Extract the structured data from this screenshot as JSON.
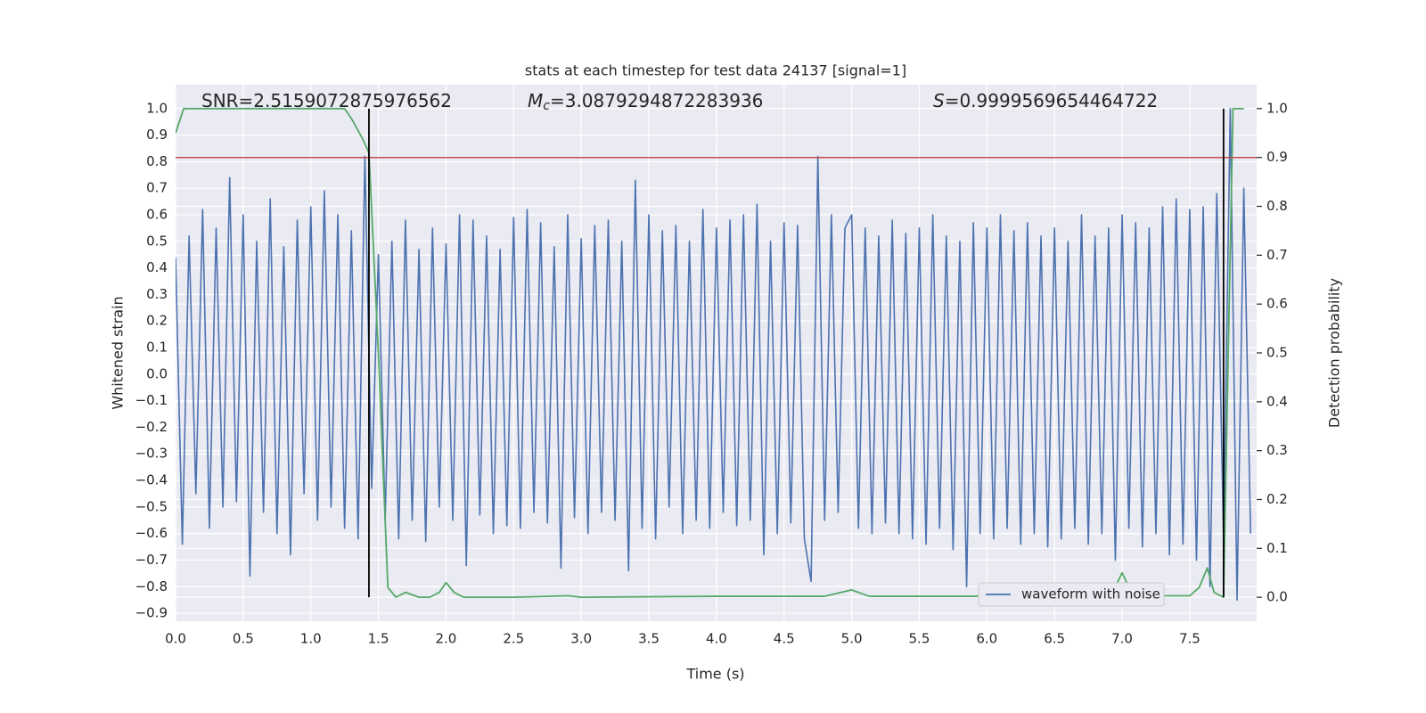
{
  "chart_data": {
    "type": "line",
    "title": "stats at each timestep for test data 24137 [signal=1]",
    "xlabel": "Time (s)",
    "ylabel": "Whitened strain",
    "y2label": "Detection probability",
    "xlim": [
      0,
      7.995
    ],
    "ylim": [
      -0.93,
      1.09
    ],
    "y2lim": [
      -0.049,
      1.049
    ],
    "xticks": [
      {
        "value": 0,
        "label": "0.0"
      },
      0.5,
      {
        "value": 1,
        "label": "1.0"
      },
      1.5,
      {
        "value": 2,
        "label": "2.0"
      },
      2.5,
      {
        "value": 3,
        "label": "3.0"
      },
      3.5,
      {
        "value": 4,
        "label": "4.0"
      },
      4.5,
      {
        "value": 5,
        "label": "5.0"
      },
      5.5,
      {
        "value": 6,
        "label": "6.0"
      },
      6.5,
      {
        "value": 7,
        "label": "7.0"
      },
      7.5
    ],
    "yticks": [
      {
        "value": -0.9,
        "label": "−0.9"
      },
      {
        "value": -0.8,
        "label": "−0.8"
      },
      {
        "value": -0.7,
        "label": "−0.7"
      },
      {
        "value": -0.6,
        "label": "−0.6"
      },
      {
        "value": -0.5,
        "label": "−0.5"
      },
      {
        "value": -0.4,
        "label": "−0.4"
      },
      {
        "value": -0.3,
        "label": "−0.3"
      },
      {
        "value": -0.2,
        "label": "−0.2"
      },
      {
        "value": -0.1,
        "label": "−0.1"
      },
      {
        "value": 0,
        "label": "0.0"
      },
      0.1,
      0.2,
      0.3,
      0.4,
      0.5,
      0.6,
      0.7,
      0.8,
      0.9,
      {
        "value": 1,
        "label": "1.0"
      }
    ],
    "y2ticks": [
      {
        "value": 0,
        "label": "0.0"
      },
      0.1,
      0.2,
      0.3,
      0.4,
      0.5,
      0.6,
      0.7,
      0.8,
      0.9,
      {
        "value": 1,
        "label": "1.0"
      }
    ],
    "grid": true,
    "legend": "lower right",
    "series": [
      {
        "name": "waveform with noise",
        "color": "#4c72b0",
        "x": [
          0,
          0.05,
          0.1,
          0.15,
          0.2,
          0.25,
          0.3,
          0.35,
          0.4,
          0.45,
          0.5,
          0.55,
          0.6,
          0.65,
          0.7,
          0.75,
          0.8,
          0.85,
          0.9,
          0.95,
          1,
          1.05,
          1.1,
          1.15,
          1.2,
          1.25,
          1.3,
          1.35,
          1.4,
          1.45,
          1.5,
          1.55,
          1.6,
          1.65,
          1.7,
          1.75,
          1.8,
          1.85,
          1.9,
          1.95,
          2,
          2.05,
          2.1,
          2.15,
          2.2,
          2.25,
          2.3,
          2.35,
          2.4,
          2.45,
          2.5,
          2.55,
          2.6,
          2.65,
          2.7,
          2.75,
          2.8,
          2.85,
          2.9,
          2.95,
          3,
          3.05,
          3.1,
          3.15,
          3.2,
          3.25,
          3.3,
          3.35,
          3.4,
          3.45,
          3.5,
          3.55,
          3.6,
          3.65,
          3.7,
          3.75,
          3.8,
          3.85,
          3.9,
          3.95,
          4,
          4.05,
          4.1,
          4.15,
          4.2,
          4.25,
          4.3,
          4.35,
          4.4,
          4.45,
          4.5,
          4.55,
          4.6,
          4.65,
          4.7,
          4.75,
          4.8,
          4.85,
          4.9,
          4.95,
          5,
          5.05,
          5.1,
          5.15,
          5.2,
          5.25,
          5.3,
          5.35,
          5.4,
          5.45,
          5.5,
          5.55,
          5.6,
          5.65,
          5.7,
          5.75,
          5.8,
          5.85,
          5.9,
          5.95,
          6,
          6.05,
          6.1,
          6.15,
          6.2,
          6.25,
          6.3,
          6.35,
          6.4,
          6.45,
          6.5,
          6.55,
          6.6,
          6.65,
          6.7,
          6.75,
          6.8,
          6.85,
          6.9,
          6.95,
          7,
          7.05,
          7.1,
          7.15,
          7.2,
          7.25,
          7.3,
          7.35,
          7.4,
          7.45,
          7.5,
          7.55,
          7.6,
          7.65,
          7.7,
          7.75,
          7.8,
          7.85,
          7.9,
          7.95
        ],
        "values": [
          0.44,
          -0.64,
          0.52,
          -0.45,
          0.62,
          -0.58,
          0.55,
          -0.5,
          0.74,
          -0.48,
          0.6,
          -0.76,
          0.5,
          -0.52,
          0.66,
          -0.6,
          0.48,
          -0.68,
          0.58,
          -0.45,
          0.63,
          -0.55,
          0.69,
          -0.5,
          0.6,
          -0.58,
          0.54,
          -0.62,
          0.82,
          -0.43,
          0.45,
          -0.55,
          0.5,
          -0.62,
          0.58,
          -0.55,
          0.47,
          -0.63,
          0.55,
          -0.5,
          0.49,
          -0.55,
          0.6,
          -0.72,
          0.58,
          -0.53,
          0.52,
          -0.6,
          0.47,
          -0.57,
          0.59,
          -0.58,
          0.62,
          -0.52,
          0.57,
          -0.56,
          0.48,
          -0.73,
          0.6,
          -0.54,
          0.51,
          -0.6,
          0.56,
          -0.52,
          0.58,
          -0.55,
          0.5,
          -0.74,
          0.73,
          -0.58,
          0.6,
          -0.62,
          0.54,
          -0.5,
          0.56,
          -0.6,
          0.5,
          -0.55,
          0.62,
          -0.58,
          0.55,
          -0.52,
          0.58,
          -0.57,
          0.6,
          -0.55,
          0.64,
          -0.68,
          0.5,
          -0.6,
          0.57,
          -0.56,
          0.56,
          -0.62,
          -0.78,
          0.82,
          -0.55,
          0.6,
          -0.52,
          0.55,
          0.6,
          -0.58,
          0.55,
          -0.6,
          0.52,
          -0.56,
          0.58,
          -0.6,
          0.53,
          -0.62,
          0.55,
          -0.64,
          0.6,
          -0.58,
          0.52,
          -0.66,
          0.5,
          -0.8,
          0.57,
          -0.6,
          0.55,
          -0.62,
          0.6,
          -0.58,
          0.54,
          -0.64,
          0.57,
          -0.6,
          0.52,
          -0.65,
          0.55,
          -0.62,
          0.5,
          -0.58,
          0.6,
          -0.64,
          0.52,
          -0.6,
          0.55,
          -0.7,
          0.6,
          -0.58,
          0.57,
          -0.65,
          0.55,
          -0.6,
          0.63,
          -0.68,
          0.66,
          -0.64,
          0.62,
          -0.7,
          0.63,
          -0.8,
          0.68,
          -0.62,
          1.0,
          -0.85,
          0.7,
          -0.6
        ]
      },
      {
        "color": "#55a868",
        "axis": "y2",
        "x": [
          0,
          0.06,
          1.2,
          1.25,
          1.3,
          1.38,
          1.43,
          1.5,
          1.57,
          1.63,
          1.7,
          1.8,
          1.88,
          1.95,
          2,
          2.06,
          2.13,
          2.5,
          2.9,
          3,
          4,
          4.8,
          5,
          5.13,
          6.6,
          6.7,
          6.8,
          6.93,
          7,
          7.08,
          7.5,
          7.57,
          7.63,
          7.68,
          7.75,
          7.82,
          7.9
        ],
        "values": [
          0.95,
          1.0,
          1.0,
          1.0,
          0.98,
          0.94,
          0.91,
          0.5,
          0.02,
          0.0,
          0.01,
          0.0,
          0.0,
          0.01,
          0.03,
          0.01,
          0.0,
          0.0,
          0.003,
          0.0,
          0.002,
          0.002,
          0.015,
          0.002,
          0.002,
          0.015,
          0.005,
          0.01,
          0.05,
          0.003,
          0.003,
          0.02,
          0.06,
          0.01,
          0.0,
          1.0,
          1.0
        ]
      }
    ],
    "vlines": {
      "x": [
        1.43,
        7.75
      ],
      "ymin": 0,
      "ymax": 1,
      "axis": "y2",
      "color": "#000000"
    },
    "hline": {
      "value": 0.9,
      "axis": "y2",
      "color": "#c44e52"
    },
    "annotations": [
      {
        "text": "SNR=2.5159072875976562"
      },
      {
        "symbol": "M",
        "subscript": "c",
        "text": "=3.0879294872283936"
      },
      {
        "symbol": "S",
        "text": "=0.9999569654464722"
      }
    ]
  }
}
